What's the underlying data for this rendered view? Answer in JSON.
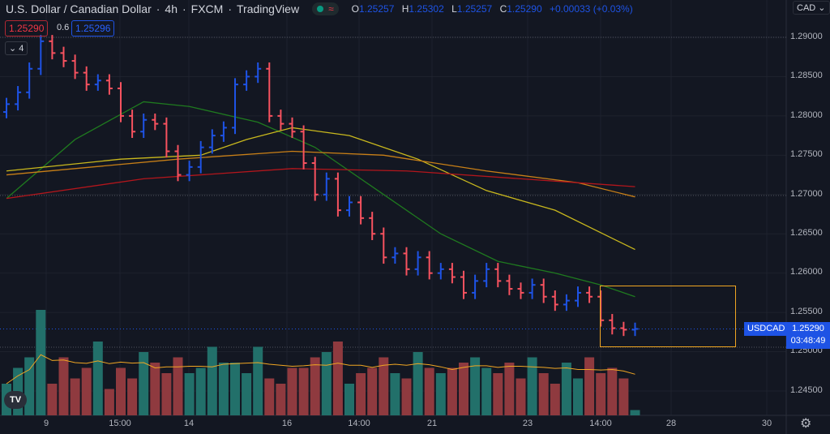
{
  "header": {
    "symbol_name": "U.S. Dollar / Canadian Dollar",
    "interval": "4h",
    "exchange": "FXCM",
    "source": "TradingView",
    "sep": "·",
    "ohlc": {
      "o_label": "O",
      "o": "1.25257",
      "h_label": "H",
      "h": "1.25302",
      "l_label": "L",
      "l": "1.25257",
      "c_label": "C",
      "c": "1.25290",
      "change": "+0.00033 (+0.03%)"
    }
  },
  "trade": {
    "sell": "1.25290",
    "spread": "0.6",
    "buy": "1.25296"
  },
  "indicators_collapse": {
    "count": "4",
    "chevron": "chevron-down-icon"
  },
  "currency_select": "CAD",
  "price_axis": [
    "1.29000",
    "1.28500",
    "1.28000",
    "1.27500",
    "1.27000",
    "1.26500",
    "1.26000",
    "1.25500",
    "1.25000",
    "1.24500"
  ],
  "time_axis": [
    "9",
    "15:00",
    "14",
    "16",
    "14:00",
    "21",
    "23",
    "14:00",
    "28",
    "30"
  ],
  "last_price": {
    "symbol": "USDCAD",
    "price": "1.25290",
    "countdown": "03:48:49"
  },
  "colors": {
    "up": "#1e53e5",
    "down": "#f7525f",
    "vol_up": "#22706a",
    "vol_down": "#8f3a3f",
    "ma_green": "#1f7a1f",
    "ma_yellow": "#c9b81d",
    "ma_orange": "#c87f17",
    "ma_red": "#b3161c",
    "rect": "#f0a622"
  },
  "chart_data": {
    "type": "ohlc-bar",
    "ylim": [
      1.2425,
      1.2925
    ],
    "first_open": 1.2805,
    "close": [
      1.2815,
      1.283,
      1.286,
      1.2895,
      1.288,
      1.287,
      1.2855,
      1.284,
      1.2845,
      1.2835,
      1.28,
      1.278,
      1.2795,
      1.279,
      1.2755,
      1.2725,
      1.2735,
      1.276,
      1.2775,
      1.2785,
      1.284,
      1.285,
      1.286,
      1.28,
      1.279,
      1.278,
      1.274,
      1.27,
      1.272,
      1.268,
      1.269,
      1.267,
      1.265,
      1.262,
      1.2625,
      1.2605,
      1.262,
      1.26,
      1.2605,
      1.2595,
      1.2575,
      1.259,
      1.2605,
      1.259,
      1.258,
      1.2575,
      1.2585,
      1.257,
      1.256,
      1.2565,
      1.2575,
      1.257,
      1.254,
      1.253,
      1.2528,
      1.2529
    ],
    "volume": [
      30,
      45,
      55,
      100,
      30,
      55,
      35,
      45,
      70,
      25,
      45,
      35,
      60,
      50,
      40,
      55,
      40,
      45,
      65,
      50,
      50,
      40,
      65,
      35,
      30,
      45,
      45,
      55,
      60,
      70,
      30,
      40,
      45,
      55,
      40,
      35,
      60,
      45,
      40,
      45,
      50,
      55,
      45,
      40,
      50,
      35,
      55,
      40,
      30,
      50,
      35,
      55,
      40,
      45,
      35,
      5
    ],
    "moving_averages": [
      {
        "color_key": "ma_green",
        "points": [
          [
            0,
            1.2695
          ],
          [
            6,
            1.277
          ],
          [
            12,
            1.2818
          ],
          [
            16,
            1.2812
          ],
          [
            22,
            1.2792
          ],
          [
            27,
            1.276
          ],
          [
            33,
            1.27
          ],
          [
            38,
            1.265
          ],
          [
            43,
            1.2615
          ],
          [
            48,
            1.26
          ],
          [
            52,
            1.2585
          ],
          [
            55,
            1.257
          ]
        ]
      },
      {
        "color_key": "ma_yellow",
        "points": [
          [
            0,
            1.273
          ],
          [
            10,
            1.2745
          ],
          [
            17,
            1.275
          ],
          [
            21,
            1.277
          ],
          [
            25,
            1.2785
          ],
          [
            30,
            1.2775
          ],
          [
            36,
            1.2745
          ],
          [
            42,
            1.2705
          ],
          [
            48,
            1.268
          ],
          [
            55,
            1.263
          ]
        ]
      },
      {
        "color_key": "ma_orange",
        "points": [
          [
            0,
            1.2725
          ],
          [
            15,
            1.2745
          ],
          [
            25,
            1.2755
          ],
          [
            33,
            1.275
          ],
          [
            42,
            1.273
          ],
          [
            50,
            1.2715
          ],
          [
            55,
            1.2697
          ]
        ]
      },
      {
        "color_key": "ma_red",
        "points": [
          [
            0,
            1.2695
          ],
          [
            12,
            1.272
          ],
          [
            25,
            1.2733
          ],
          [
            35,
            1.273
          ],
          [
            45,
            1.272
          ],
          [
            55,
            1.271
          ]
        ]
      }
    ]
  }
}
